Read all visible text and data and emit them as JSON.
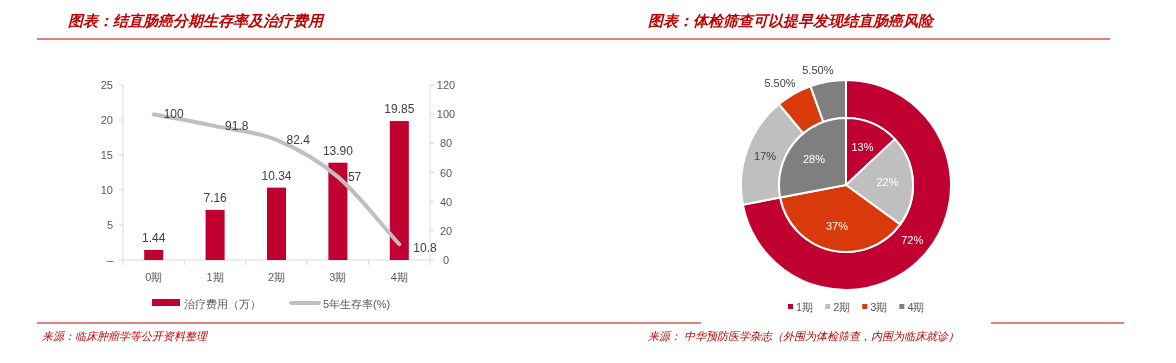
{
  "chart_data": [
    {
      "type": "bar",
      "title": "图表：结直肠癌分期生存率及治疗费用",
      "categories": [
        "0期",
        "1期",
        "2期",
        "3期",
        "4期"
      ],
      "series": [
        {
          "name": "治疗费用（万）",
          "color": "#c00030",
          "values": [
            1.44,
            7.16,
            10.34,
            13.9,
            19.85
          ],
          "value_labels": [
            "1.44",
            "7.16",
            "10.34",
            "13.90",
            "19.85"
          ]
        },
        {
          "name": "5年生存率(%)",
          "type": "line",
          "axis": "y2",
          "color": "#bfbfbf",
          "values": [
            100,
            91.8,
            82.4,
            57,
            10.8
          ],
          "value_labels": [
            "100",
            "91.8",
            "82.4",
            "57",
            "10.8"
          ]
        }
      ],
      "ylim": [
        0,
        25
      ],
      "yticks": [
        {
          "value": 0,
          "label": "–"
        },
        5,
        10,
        15,
        20,
        25
      ],
      "y2lim": [
        0,
        120
      ],
      "y2ticks": [
        0,
        20,
        40,
        60,
        80,
        100,
        120
      ],
      "legend": "bottom",
      "annotations": [
        "来源：临床肿瘤学等公开资料整理"
      ]
    },
    {
      "type": "donut",
      "title": "图表：体检筛查可以提早发现结直肠癌风险",
      "categories": [
        "1期",
        "2期",
        "3期",
        "4期"
      ],
      "colors": [
        "#c00030",
        "#bfbfbf",
        "#d93a0b",
        "#7f7f7f"
      ],
      "series": [
        {
          "values": [
            72,
            17,
            5.5,
            5.5
          ],
          "value_labels": [
            "72%",
            "17%",
            "5.50%",
            "5.50%"
          ]
        },
        {
          "values": [
            13,
            22,
            37,
            28
          ],
          "value_labels": [
            "13%",
            "22%",
            "37%",
            "28%"
          ]
        }
      ],
      "legend": "bottom",
      "annotations": [
        "来源： 中华预防医学杂志（外围为体检筛查，内围为临床就诊）"
      ]
    }
  ]
}
